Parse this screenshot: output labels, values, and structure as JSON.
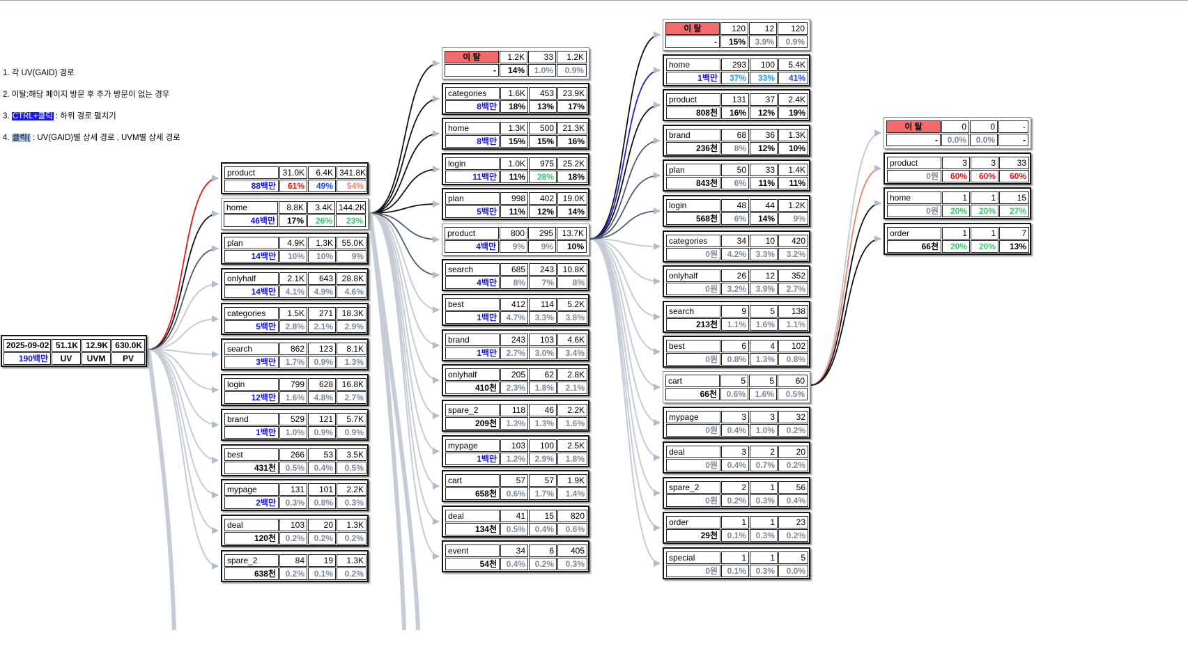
{
  "legend": [
    {
      "pre": "1. 각 UV(GAID) 경로",
      "hl": "",
      "post": "",
      "style": ""
    },
    {
      "pre": "2. 이탈:해당 페이지 방문 후 추가 방문이 없는 경우",
      "hl": "",
      "post": "",
      "style": ""
    },
    {
      "pre": "3. ",
      "hl": "CTRL+클릭",
      "post": " : 하위 경로 펼치기",
      "style": "dark"
    },
    {
      "pre": "4. ",
      "hl": "클릭(",
      "post": " : UV(GAID)별 상세 경로 , UVM별 상세 경로",
      "style": "light"
    }
  ],
  "colors": {
    "revenue_blue": "#1111ee",
    "pct_red": "#ee1111",
    "pct_blue": "#1a4ae8",
    "pct_sky": "#1aa3e8",
    "pct_green": "#33cc66",
    "pct_salmon": "#f08070",
    "pct_gray": "#7a8aa0",
    "pct_black": "#000000",
    "link_red": "#e01818",
    "link_black": "#111111",
    "link_slate": "#4a5a70",
    "link_light": "#c5ccd6",
    "link_salmon": "#f08070",
    "link_blue": "#2020d0",
    "churn_bg": "#f26b6b"
  },
  "root": {
    "date": "2025-09-02",
    "uv": "51.1K",
    "uvm": "12.9K",
    "pv": "630.0K",
    "revenue": "190백만",
    "lbl_uv": "UV",
    "lbl_uvm": "UVM",
    "lbl_pv": "PV"
  },
  "columns": [
    {
      "nodes": [
        {
          "name": "product",
          "uv": "31.0K",
          "uvm": "6.4K",
          "pv": "341.8K",
          "rev": "88백만",
          "rev_c": "revenue_blue",
          "p1": "61%",
          "p1c": "pct_red",
          "p2": "49%",
          "p2c": "pct_blue",
          "p3": "54%",
          "p3c": "pct_salmon",
          "link": "link_red",
          "box": "thick"
        },
        {
          "name": "home",
          "uv": "8.8K",
          "uvm": "3.4K",
          "pv": "144.2K",
          "rev": "46백만",
          "rev_c": "revenue_blue",
          "p1": "17%",
          "p1c": "pct_black",
          "p2": "26%",
          "p2c": "pct_green",
          "p3": "23%",
          "p3c": "pct_green",
          "link": "link_black",
          "box": "light"
        },
        {
          "name": "plan",
          "uv": "4.9K",
          "uvm": "1.3K",
          "pv": "55.0K",
          "rev": "14백만",
          "rev_c": "revenue_blue",
          "p1": "10%",
          "p1c": "pct_gray",
          "p2": "10%",
          "p2c": "pct_gray",
          "p3": "9%",
          "p3c": "pct_gray",
          "link": "link_slate",
          "box": "thick"
        },
        {
          "name": "onlyhalf",
          "uv": "2.1K",
          "uvm": "643",
          "pv": "28.8K",
          "rev": "14백만",
          "rev_c": "revenue_blue",
          "p1": "4.1%",
          "p1c": "pct_gray",
          "p2": "4.9%",
          "p2c": "pct_gray",
          "p3": "4.6%",
          "p3c": "pct_gray",
          "link": "link_light",
          "box": "thick"
        },
        {
          "name": "categories",
          "uv": "1.5K",
          "uvm": "271",
          "pv": "18.3K",
          "rev": "5백만",
          "rev_c": "revenue_blue",
          "p1": "2.8%",
          "p1c": "pct_gray",
          "p2": "2.1%",
          "p2c": "pct_gray",
          "p3": "2.9%",
          "p3c": "pct_gray",
          "link": "link_light",
          "box": "thick"
        },
        {
          "name": "search",
          "uv": "862",
          "uvm": "123",
          "pv": "8.1K",
          "rev": "3백만",
          "rev_c": "revenue_blue",
          "p1": "1.7%",
          "p1c": "pct_gray",
          "p2": "0.9%",
          "p2c": "pct_gray",
          "p3": "1.3%",
          "p3c": "pct_gray",
          "link": "link_light",
          "box": "thick"
        },
        {
          "name": "login",
          "uv": "799",
          "uvm": "628",
          "pv": "16.8K",
          "rev": "12백만",
          "rev_c": "revenue_blue",
          "p1": "1.6%",
          "p1c": "pct_gray",
          "p2": "4.8%",
          "p2c": "pct_gray",
          "p3": "2.7%",
          "p3c": "pct_gray",
          "link": "link_light",
          "box": "thick"
        },
        {
          "name": "brand",
          "uv": "529",
          "uvm": "121",
          "pv": "5.7K",
          "rev": "1백만",
          "rev_c": "revenue_blue",
          "p1": "1.0%",
          "p1c": "pct_gray",
          "p2": "0.9%",
          "p2c": "pct_gray",
          "p3": "0.9%",
          "p3c": "pct_gray",
          "link": "link_light",
          "box": "thick"
        },
        {
          "name": "best",
          "uv": "266",
          "uvm": "53",
          "pv": "3.5K",
          "rev": "431천",
          "rev_c": "pct_black",
          "p1": "0.5%",
          "p1c": "pct_gray",
          "p2": "0.4%",
          "p2c": "pct_gray",
          "p3": "0.5%",
          "p3c": "pct_gray",
          "link": "link_light",
          "box": "thick"
        },
        {
          "name": "mypage",
          "uv": "131",
          "uvm": "101",
          "pv": "2.2K",
          "rev": "2백만",
          "rev_c": "revenue_blue",
          "p1": "0.3%",
          "p1c": "pct_gray",
          "p2": "0.8%",
          "p2c": "pct_gray",
          "p3": "0.3%",
          "p3c": "pct_gray",
          "link": "link_light",
          "box": "thick"
        },
        {
          "name": "deal",
          "uv": "103",
          "uvm": "20",
          "pv": "1.3K",
          "rev": "120천",
          "rev_c": "pct_black",
          "p1": "0.2%",
          "p1c": "pct_gray",
          "p2": "0.2%",
          "p2c": "pct_gray",
          "p3": "0.2%",
          "p3c": "pct_gray",
          "link": "link_light",
          "box": "thick"
        },
        {
          "name": "spare_2",
          "uv": "84",
          "uvm": "19",
          "pv": "1.3K",
          "rev": "638천",
          "rev_c": "pct_black",
          "p1": "0.2%",
          "p1c": "pct_gray",
          "p2": "0.1%",
          "p2c": "pct_gray",
          "p3": "0.2%",
          "p3c": "pct_gray",
          "link": "link_light",
          "box": "thick"
        }
      ]
    },
    {
      "nodes": [
        {
          "name": "이 탈",
          "churn": true,
          "uv": "1.2K",
          "uvm": "33",
          "pv": "1.2K",
          "rev": "-",
          "rev_c": "pct_black",
          "p1": "14%",
          "p1c": "pct_black",
          "p2": "1.0%",
          "p2c": "pct_gray",
          "p3": "0.9%",
          "p3c": "pct_gray",
          "link": "link_black",
          "box": "light"
        },
        {
          "name": "categories",
          "uv": "1.6K",
          "uvm": "453",
          "pv": "23.9K",
          "rev": "8백만",
          "rev_c": "revenue_blue",
          "p1": "18%",
          "p1c": "pct_black",
          "p2": "13%",
          "p2c": "pct_black",
          "p3": "17%",
          "p3c": "pct_black",
          "link": "link_black",
          "box": "thick"
        },
        {
          "name": "home",
          "uv": "1.3K",
          "uvm": "500",
          "pv": "21.3K",
          "rev": "8백만",
          "rev_c": "revenue_blue",
          "p1": "15%",
          "p1c": "pct_black",
          "p2": "15%",
          "p2c": "pct_black",
          "p3": "16%",
          "p3c": "pct_black",
          "link": "link_black",
          "box": "thick"
        },
        {
          "name": "login",
          "uv": "1.0K",
          "uvm": "975",
          "pv": "25.2K",
          "rev": "11백만",
          "rev_c": "revenue_blue",
          "p1": "11%",
          "p1c": "pct_black",
          "p2": "28%",
          "p2c": "pct_green",
          "p3": "18%",
          "p3c": "pct_black",
          "link": "link_black",
          "box": "thick"
        },
        {
          "name": "plan",
          "uv": "998",
          "uvm": "402",
          "pv": "19.0K",
          "rev": "5백만",
          "rev_c": "revenue_blue",
          "p1": "11%",
          "p1c": "pct_black",
          "p2": "12%",
          "p2c": "pct_black",
          "p3": "14%",
          "p3c": "pct_black",
          "link": "link_black",
          "box": "thick"
        },
        {
          "name": "product",
          "uv": "800",
          "uvm": "295",
          "pv": "13.7K",
          "rev": "4백만",
          "rev_c": "revenue_blue",
          "p1": "9%",
          "p1c": "pct_gray",
          "p2": "9%",
          "p2c": "pct_gray",
          "p3": "10%",
          "p3c": "pct_black",
          "link": "link_slate",
          "box": "light"
        },
        {
          "name": "search",
          "uv": "685",
          "uvm": "243",
          "pv": "10.8K",
          "rev": "4백만",
          "rev_c": "revenue_blue",
          "p1": "8%",
          "p1c": "pct_gray",
          "p2": "7%",
          "p2c": "pct_gray",
          "p3": "8%",
          "p3c": "pct_gray",
          "link": "link_slate",
          "box": "thick"
        },
        {
          "name": "best",
          "uv": "412",
          "uvm": "114",
          "pv": "5.2K",
          "rev": "1백만",
          "rev_c": "revenue_blue",
          "p1": "4.7%",
          "p1c": "pct_gray",
          "p2": "3.3%",
          "p2c": "pct_gray",
          "p3": "3.8%",
          "p3c": "pct_gray",
          "link": "link_light",
          "box": "thick"
        },
        {
          "name": "brand",
          "uv": "243",
          "uvm": "103",
          "pv": "4.6K",
          "rev": "1백만",
          "rev_c": "revenue_blue",
          "p1": "2.7%",
          "p1c": "pct_gray",
          "p2": "3.0%",
          "p2c": "pct_gray",
          "p3": "3.4%",
          "p3c": "pct_gray",
          "link": "link_light",
          "box": "thick"
        },
        {
          "name": "onlyhalf",
          "uv": "205",
          "uvm": "62",
          "pv": "2.8K",
          "rev": "410천",
          "rev_c": "pct_black",
          "p1": "2.3%",
          "p1c": "pct_gray",
          "p2": "1.8%",
          "p2c": "pct_gray",
          "p3": "2.1%",
          "p3c": "pct_gray",
          "link": "link_light",
          "box": "thick"
        },
        {
          "name": "spare_2",
          "uv": "118",
          "uvm": "46",
          "pv": "2.2K",
          "rev": "209천",
          "rev_c": "pct_black",
          "p1": "1.3%",
          "p1c": "pct_gray",
          "p2": "1.3%",
          "p2c": "pct_gray",
          "p3": "1.6%",
          "p3c": "pct_gray",
          "link": "link_light",
          "box": "thick"
        },
        {
          "name": "mypage",
          "uv": "103",
          "uvm": "100",
          "pv": "2.5K",
          "rev": "1백만",
          "rev_c": "revenue_blue",
          "p1": "1.2%",
          "p1c": "pct_gray",
          "p2": "2.9%",
          "p2c": "pct_gray",
          "p3": "1.8%",
          "p3c": "pct_gray",
          "link": "link_light",
          "box": "thick"
        },
        {
          "name": "cart",
          "uv": "57",
          "uvm": "57",
          "pv": "1.9K",
          "rev": "658천",
          "rev_c": "pct_black",
          "p1": "0.6%",
          "p1c": "pct_gray",
          "p2": "1.7%",
          "p2c": "pct_gray",
          "p3": "1.4%",
          "p3c": "pct_gray",
          "link": "link_light",
          "box": "thick"
        },
        {
          "name": "deal",
          "uv": "41",
          "uvm": "15",
          "pv": "820",
          "rev": "134천",
          "rev_c": "pct_black",
          "p1": "0.5%",
          "p1c": "pct_gray",
          "p2": "0.4%",
          "p2c": "pct_gray",
          "p3": "0.6%",
          "p3c": "pct_gray",
          "link": "link_light",
          "box": "thick"
        },
        {
          "name": "event",
          "uv": "34",
          "uvm": "6",
          "pv": "405",
          "rev": "54천",
          "rev_c": "pct_black",
          "p1": "0.4%",
          "p1c": "pct_gray",
          "p2": "0.2%",
          "p2c": "pct_gray",
          "p3": "0.3%",
          "p3c": "pct_gray",
          "link": "link_light",
          "box": "thick"
        }
      ]
    },
    {
      "nodes": [
        {
          "name": "이 탈",
          "churn": true,
          "uv": "120",
          "uvm": "12",
          "pv": "120",
          "rev": "-",
          "rev_c": "pct_black",
          "p1": "15%",
          "p1c": "pct_black",
          "p2": "3.9%",
          "p2c": "pct_gray",
          "p3": "0.9%",
          "p3c": "pct_gray",
          "link": "link_black",
          "box": "light"
        },
        {
          "name": "home",
          "uv": "293",
          "uvm": "100",
          "pv": "5.4K",
          "rev": "1백만",
          "rev_c": "revenue_blue",
          "p1": "37%",
          "p1c": "pct_sky",
          "p2": "33%",
          "p2c": "pct_sky",
          "p3": "41%",
          "p3c": "pct_blue",
          "link": "link_blue",
          "box": "thick"
        },
        {
          "name": "product",
          "uv": "131",
          "uvm": "37",
          "pv": "2.4K",
          "rev": "808천",
          "rev_c": "pct_black",
          "p1": "16%",
          "p1c": "pct_black",
          "p2": "12%",
          "p2c": "pct_black",
          "p3": "19%",
          "p3c": "pct_black",
          "link": "link_black",
          "box": "thick"
        },
        {
          "name": "brand",
          "uv": "68",
          "uvm": "36",
          "pv": "1.3K",
          "rev": "236천",
          "rev_c": "pct_black",
          "p1": "8%",
          "p1c": "pct_gray",
          "p2": "12%",
          "p2c": "pct_black",
          "p3": "10%",
          "p3c": "pct_black",
          "link": "link_slate",
          "box": "thick"
        },
        {
          "name": "plan",
          "uv": "50",
          "uvm": "33",
          "pv": "1.4K",
          "rev": "843천",
          "rev_c": "pct_black",
          "p1": "6%",
          "p1c": "pct_gray",
          "p2": "11%",
          "p2c": "pct_black",
          "p3": "11%",
          "p3c": "pct_black",
          "link": "link_slate",
          "box": "thick"
        },
        {
          "name": "login",
          "uv": "48",
          "uvm": "44",
          "pv": "1.2K",
          "rev": "568천",
          "rev_c": "pct_black",
          "p1": "6%",
          "p1c": "pct_gray",
          "p2": "14%",
          "p2c": "pct_black",
          "p3": "9%",
          "p3c": "pct_gray",
          "link": "link_slate",
          "box": "thick"
        },
        {
          "name": "categories",
          "uv": "34",
          "uvm": "10",
          "pv": "420",
          "rev": "0원",
          "rev_c": "pct_gray",
          "p1": "4.2%",
          "p1c": "pct_gray",
          "p2": "3.3%",
          "p2c": "pct_gray",
          "p3": "3.2%",
          "p3c": "pct_gray",
          "link": "link_light",
          "box": "thick"
        },
        {
          "name": "onlyhalf",
          "uv": "26",
          "uvm": "12",
          "pv": "352",
          "rev": "0원",
          "rev_c": "pct_gray",
          "p1": "3.2%",
          "p1c": "pct_gray",
          "p2": "3.9%",
          "p2c": "pct_gray",
          "p3": "2.7%",
          "p3c": "pct_gray",
          "link": "link_light",
          "box": "thick"
        },
        {
          "name": "search",
          "uv": "9",
          "uvm": "5",
          "pv": "138",
          "rev": "213천",
          "rev_c": "pct_black",
          "p1": "1.1%",
          "p1c": "pct_gray",
          "p2": "1.6%",
          "p2c": "pct_gray",
          "p3": "1.1%",
          "p3c": "pct_gray",
          "link": "link_light",
          "box": "thick"
        },
        {
          "name": "best",
          "uv": "6",
          "uvm": "4",
          "pv": "102",
          "rev": "0원",
          "rev_c": "pct_gray",
          "p1": "0.8%",
          "p1c": "pct_gray",
          "p2": "1.3%",
          "p2c": "pct_gray",
          "p3": "0.8%",
          "p3c": "pct_gray",
          "link": "link_light",
          "box": "thick"
        },
        {
          "name": "cart",
          "uv": "5",
          "uvm": "5",
          "pv": "60",
          "rev": "66천",
          "rev_c": "pct_black",
          "p1": "0.6%",
          "p1c": "pct_gray",
          "p2": "1.6%",
          "p2c": "pct_gray",
          "p3": "0.5%",
          "p3c": "pct_gray",
          "link": "link_light",
          "box": "light"
        },
        {
          "name": "mypage",
          "uv": "3",
          "uvm": "3",
          "pv": "32",
          "rev": "0원",
          "rev_c": "pct_gray",
          "p1": "0.4%",
          "p1c": "pct_gray",
          "p2": "1.0%",
          "p2c": "pct_gray",
          "p3": "0.2%",
          "p3c": "pct_gray",
          "link": "link_light",
          "box": "thick"
        },
        {
          "name": "deal",
          "uv": "3",
          "uvm": "2",
          "pv": "20",
          "rev": "0원",
          "rev_c": "pct_gray",
          "p1": "0.4%",
          "p1c": "pct_gray",
          "p2": "0.7%",
          "p2c": "pct_gray",
          "p3": "0.2%",
          "p3c": "pct_gray",
          "link": "link_light",
          "box": "thick"
        },
        {
          "name": "spare_2",
          "uv": "2",
          "uvm": "1",
          "pv": "56",
          "rev": "0원",
          "rev_c": "pct_gray",
          "p1": "0.2%",
          "p1c": "pct_gray",
          "p2": "0.3%",
          "p2c": "pct_gray",
          "p3": "0.4%",
          "p3c": "pct_gray",
          "link": "link_light",
          "box": "thick"
        },
        {
          "name": "order",
          "uv": "1",
          "uvm": "1",
          "pv": "23",
          "rev": "29천",
          "rev_c": "pct_black",
          "p1": "0.1%",
          "p1c": "pct_gray",
          "p2": "0.3%",
          "p2c": "pct_gray",
          "p3": "0.2%",
          "p3c": "pct_gray",
          "link": "link_light",
          "box": "thick"
        },
        {
          "name": "special",
          "uv": "1",
          "uvm": "1",
          "pv": "5",
          "rev": "0원",
          "rev_c": "pct_gray",
          "p1": "0.1%",
          "p1c": "pct_gray",
          "p2": "0.3%",
          "p2c": "pct_gray",
          "p3": "0.0%",
          "p3c": "pct_gray",
          "link": "link_light",
          "box": "thick"
        }
      ]
    },
    {
      "nodes": [
        {
          "name": "이 탈",
          "churn": true,
          "uv": "0",
          "uvm": "0",
          "pv": "-",
          "rev": "-",
          "rev_c": "pct_black",
          "p1": "0.0%",
          "p1c": "pct_gray",
          "p2": "0.0%",
          "p2c": "pct_gray",
          "p3": "-",
          "p3c": "pct_black",
          "link": "link_light",
          "box": "light"
        },
        {
          "name": "product",
          "uv": "3",
          "uvm": "3",
          "pv": "33",
          "rev": "0원",
          "rev_c": "pct_gray",
          "p1": "60%",
          "p1c": "pct_red",
          "p2": "60%",
          "p2c": "pct_red",
          "p3": "60%",
          "p3c": "pct_red",
          "link": "link_salmon",
          "box": "thick"
        },
        {
          "name": "home",
          "uv": "1",
          "uvm": "1",
          "pv": "15",
          "rev": "0원",
          "rev_c": "pct_gray",
          "p1": "20%",
          "p1c": "pct_green",
          "p2": "20%",
          "p2c": "pct_green",
          "p3": "27%",
          "p3c": "pct_green",
          "link": "link_black",
          "box": "thick"
        },
        {
          "name": "order",
          "uv": "1",
          "uvm": "1",
          "pv": "7",
          "rev": "66천",
          "rev_c": "pct_black",
          "p1": "20%",
          "p1c": "pct_green",
          "p2": "20%",
          "p2c": "pct_green",
          "p3": "13%",
          "p3c": "pct_black",
          "link": "link_black",
          "box": "thick"
        }
      ]
    }
  ]
}
